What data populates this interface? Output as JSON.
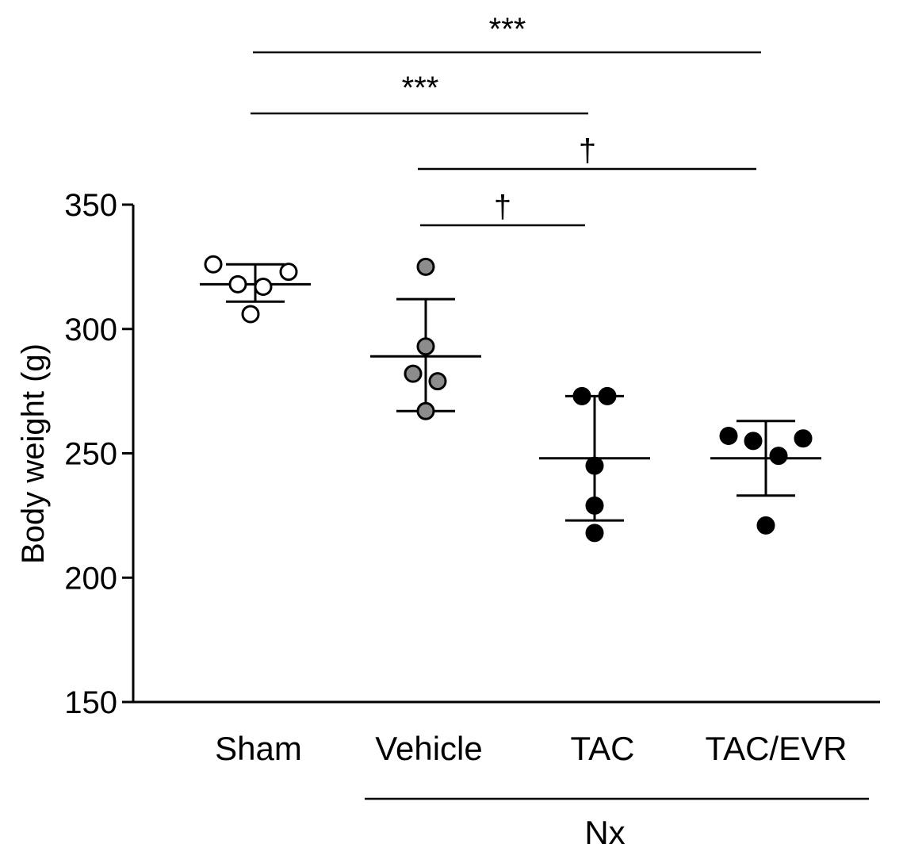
{
  "chart_data": {
    "type": "scatter",
    "title": "",
    "xlabel": "",
    "ylabel": "Body weight (g)",
    "ylim": [
      150,
      350
    ],
    "yticks": [
      150,
      200,
      250,
      300,
      350
    ],
    "yticks_labels": [
      "150",
      "200",
      "250",
      "300",
      "350"
    ],
    "grid": false,
    "categories": [
      "Sham",
      "Vehicle",
      "TAC",
      "TAC/EVR"
    ],
    "group_bracket": {
      "label": "Nx",
      "from": "Vehicle",
      "to": "TAC/EVR"
    },
    "groups": [
      {
        "name": "Sham",
        "marker": "open",
        "fill": "#ffffff",
        "points": [
          326,
          318,
          317,
          323,
          306
        ],
        "mean": 318,
        "sd_upper": 326,
        "sd_lower": 311
      },
      {
        "name": "Vehicle",
        "marker": "gray",
        "fill": "#8c8c8c",
        "points": [
          325,
          293,
          282,
          279,
          267
        ],
        "mean": 289,
        "sd_upper": 312,
        "sd_lower": 267
      },
      {
        "name": "TAC",
        "marker": "filled",
        "fill": "#000000",
        "points": [
          273,
          273,
          245,
          229,
          218
        ],
        "mean": 248,
        "sd_upper": 273,
        "sd_lower": 223
      },
      {
        "name": "TAC/EVR",
        "marker": "filled",
        "fill": "#000000",
        "points": [
          257,
          255,
          249,
          256,
          221
        ],
        "mean": 248,
        "sd_upper": 263,
        "sd_lower": 233
      }
    ],
    "significance": [
      {
        "from": "Sham",
        "to": "TAC/EVR",
        "label": "***"
      },
      {
        "from": "Sham",
        "to": "TAC",
        "label": "***"
      },
      {
        "from": "Vehicle",
        "to": "TAC/EVR",
        "label": "†"
      },
      {
        "from": "Vehicle",
        "to": "TAC",
        "label": "†"
      }
    ]
  }
}
